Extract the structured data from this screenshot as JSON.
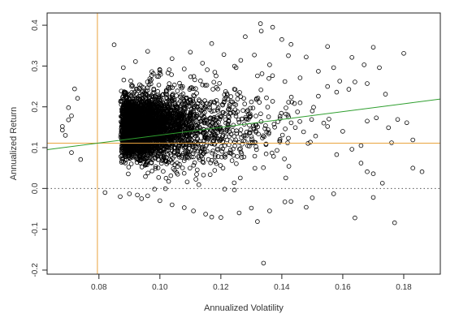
{
  "chart_data": {
    "type": "scatter",
    "title": "",
    "xlabel": "Annualized Volatility",
    "ylabel": "Annualized Return",
    "xlim": [
      0.063,
      0.192
    ],
    "ylim": [
      -0.21,
      0.43
    ],
    "x_ticks": [
      0.08,
      0.1,
      0.12,
      0.14,
      0.16,
      0.18
    ],
    "x_tick_labels": [
      "0.08",
      "0.10",
      "0.12",
      "0.14",
      "0.16",
      "0.18"
    ],
    "y_ticks": [
      -0.2,
      -0.1,
      0.0,
      0.1,
      0.2,
      0.3,
      0.4
    ],
    "y_tick_labels": [
      "-0.2",
      "-0.1",
      "0.0",
      "0.1",
      "0.2",
      "0.3",
      "0.4"
    ],
    "grid": false,
    "legend": "none",
    "marker": "open-circle",
    "marker_color": "#000000",
    "reference_lines": [
      {
        "kind": "vertical",
        "x": 0.0795,
        "color": "#e8a33d",
        "style": "solid"
      },
      {
        "kind": "horizontal",
        "y": 0.111,
        "color": "#e8a33d",
        "style": "solid"
      },
      {
        "kind": "horizontal",
        "y": 0.0,
        "color": "#555555",
        "style": "dotted"
      },
      {
        "kind": "line",
        "from": [
          0.063,
          0.095
        ],
        "to": [
          0.192,
          0.219
        ],
        "color": "#2e9e2e",
        "style": "solid"
      }
    ],
    "dense_core": {
      "x_range": [
        0.0715,
        0.108
      ],
      "y_range": [
        0.06,
        0.235
      ],
      "center": [
        0.088,
        0.152
      ]
    },
    "points": [
      [
        0.133,
        0.404
      ],
      [
        0.137,
        0.395
      ],
      [
        0.128,
        0.372
      ],
      [
        0.14,
        0.365
      ],
      [
        0.117,
        0.355
      ],
      [
        0.143,
        0.353
      ],
      [
        0.155,
        0.348
      ],
      [
        0.17,
        0.346
      ],
      [
        0.163,
        0.321
      ],
      [
        0.167,
        0.303
      ],
      [
        0.172,
        0.296
      ],
      [
        0.18,
        0.331
      ],
      [
        0.085,
        0.352
      ],
      [
        0.096,
        0.336
      ],
      [
        0.11,
        0.334
      ],
      [
        0.121,
        0.328
      ],
      [
        0.131,
        0.327
      ],
      [
        0.148,
        0.322
      ],
      [
        0.157,
        0.296
      ],
      [
        0.092,
        0.311
      ],
      [
        0.104,
        0.318
      ],
      [
        0.114,
        0.307
      ],
      [
        0.136,
        0.303
      ],
      [
        0.152,
        0.287
      ],
      [
        0.125,
        0.296
      ],
      [
        0.146,
        0.271
      ],
      [
        0.159,
        0.263
      ],
      [
        0.164,
        0.261
      ],
      [
        0.168,
        0.257
      ],
      [
        0.155,
        0.25
      ],
      [
        0.141,
        0.262
      ],
      [
        0.132,
        0.276
      ],
      [
        0.118,
        0.285
      ],
      [
        0.1,
        0.29
      ],
      [
        0.088,
        0.296
      ],
      [
        0.158,
        0.236
      ],
      [
        0.162,
        0.243
      ],
      [
        0.174,
        0.231
      ],
      [
        0.171,
        0.173
      ],
      [
        0.178,
        0.169
      ],
      [
        0.168,
        0.165
      ],
      [
        0.175,
        0.149
      ],
      [
        0.181,
        0.161
      ],
      [
        0.183,
        0.119
      ],
      [
        0.176,
        0.112
      ],
      [
        0.166,
        0.105
      ],
      [
        0.163,
        0.096
      ],
      [
        0.158,
        0.083
      ],
      [
        0.166,
        0.062
      ],
      [
        0.168,
        0.041
      ],
      [
        0.17,
        0.036
      ],
      [
        0.173,
        0.013
      ],
      [
        0.186,
        0.041
      ],
      [
        0.183,
        0.05
      ],
      [
        0.17,
        -0.022
      ],
      [
        0.15,
        -0.023
      ],
      [
        0.157,
        -0.013
      ],
      [
        0.143,
        -0.032
      ],
      [
        0.136,
        -0.055
      ],
      [
        0.141,
        -0.033
      ],
      [
        0.148,
        -0.046
      ],
      [
        0.164,
        -0.072
      ],
      [
        0.177,
        -0.084
      ],
      [
        0.132,
        -0.081
      ],
      [
        0.13,
        -0.048
      ],
      [
        0.126,
        -0.06
      ],
      [
        0.12,
        -0.071
      ],
      [
        0.117,
        -0.07
      ],
      [
        0.115,
        -0.063
      ],
      [
        0.111,
        -0.055
      ],
      [
        0.134,
        -0.183
      ],
      [
        0.082,
        -0.01
      ],
      [
        0.09,
        -0.013
      ],
      [
        0.096,
        -0.018
      ],
      [
        0.1,
        -0.03
      ],
      [
        0.104,
        -0.04
      ],
      [
        0.108,
        -0.047
      ],
      [
        0.094,
        -0.025
      ],
      [
        0.087,
        -0.02
      ],
      [
        0.155,
        0.152
      ],
      [
        0.16,
        0.14
      ],
      [
        0.15,
        0.19
      ],
      [
        0.146,
        0.21
      ],
      [
        0.152,
        0.226
      ],
      [
        0.142,
        0.18
      ],
      [
        0.068,
        0.152
      ],
      [
        0.07,
        0.198
      ],
      [
        0.069,
        0.13
      ],
      [
        0.071,
        0.088
      ],
      [
        0.072,
        0.244
      ],
      [
        0.074,
        0.071
      ],
      [
        0.073,
        0.221
      ],
      [
        0.07,
        0.168
      ],
      [
        0.068,
        0.143
      ],
      [
        0.071,
        0.178
      ]
    ]
  }
}
